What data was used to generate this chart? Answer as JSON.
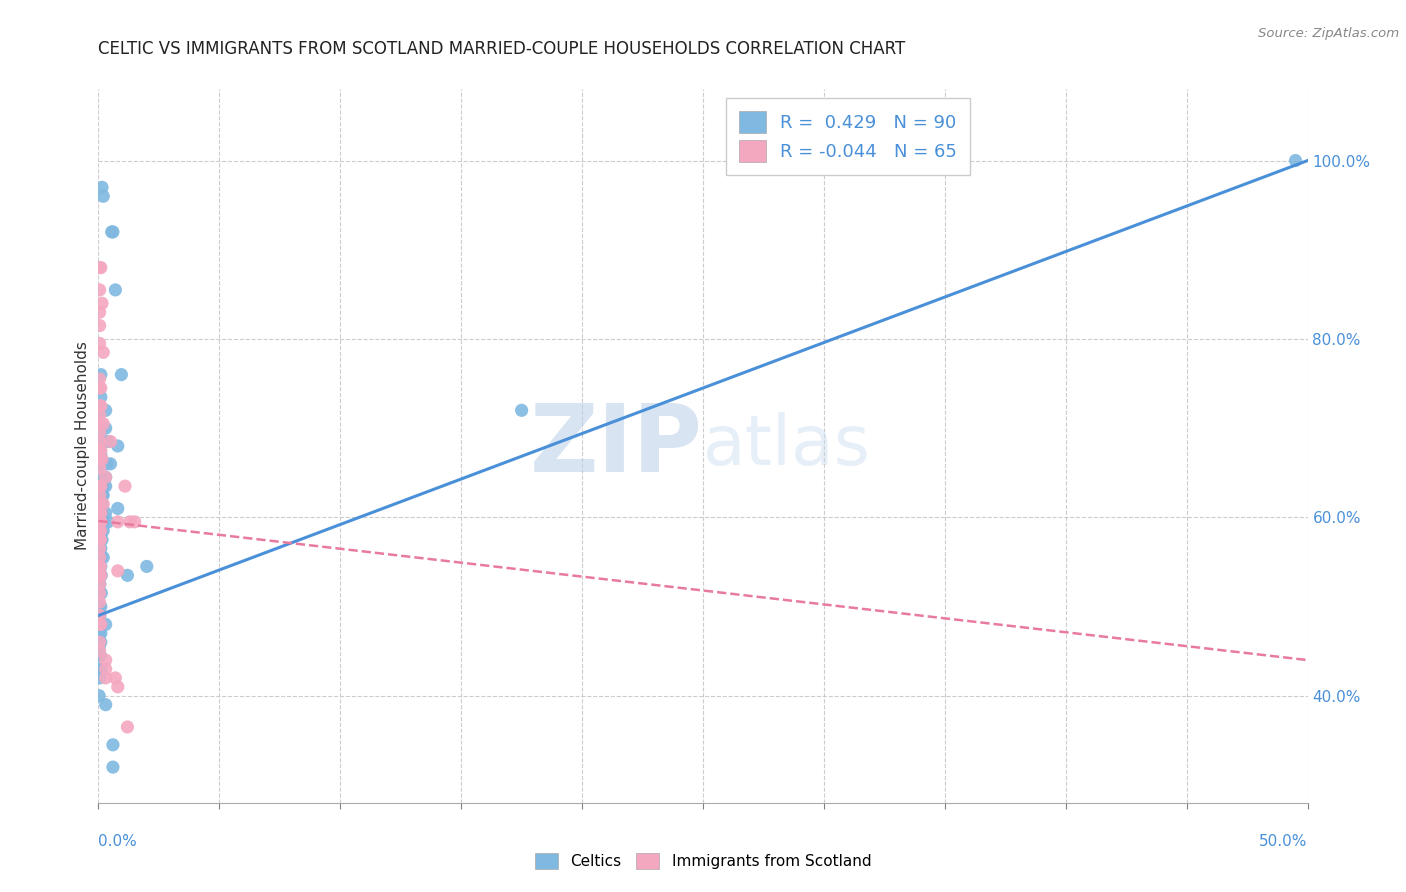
{
  "title": "CELTIC VS IMMIGRANTS FROM SCOTLAND MARRIED-COUPLE HOUSEHOLDS CORRELATION CHART",
  "source_text": "Source: ZipAtlas.com",
  "ylabel": "Married-couple Households",
  "celtics_color": "#7fb8e0",
  "immigrants_color": "#f4a8c0",
  "celtics_line_color": "#4a90d9",
  "immigrants_line_color": "#e87aa0",
  "background_color": "#ffffff",
  "watermark_zip": "ZIP",
  "watermark_atlas": "atlas",
  "celtics_scatter": [
    [
      0.0015,
      0.97
    ],
    [
      0.002,
      0.96
    ],
    [
      0.0055,
      0.92
    ],
    [
      0.006,
      0.92
    ],
    [
      0.007,
      0.855
    ],
    [
      0.001,
      0.76
    ],
    [
      0.0095,
      0.76
    ],
    [
      0.001,
      0.735
    ],
    [
      0.0005,
      0.72
    ],
    [
      0.003,
      0.72
    ],
    [
      0.003,
      0.7
    ],
    [
      0.0005,
      0.69
    ],
    [
      0.002,
      0.685
    ],
    [
      0.004,
      0.685
    ],
    [
      0.0005,
      0.675
    ],
    [
      0.001,
      0.67
    ],
    [
      0.0008,
      0.66
    ],
    [
      0.0012,
      0.66
    ],
    [
      0.0035,
      0.66
    ],
    [
      0.005,
      0.66
    ],
    [
      0.0008,
      0.645
    ],
    [
      0.003,
      0.645
    ],
    [
      0.0005,
      0.635
    ],
    [
      0.001,
      0.635
    ],
    [
      0.002,
      0.635
    ],
    [
      0.003,
      0.635
    ],
    [
      0.0005,
      0.625
    ],
    [
      0.0015,
      0.625
    ],
    [
      0.002,
      0.625
    ],
    [
      0.0005,
      0.615
    ],
    [
      0.001,
      0.615
    ],
    [
      0.0015,
      0.615
    ],
    [
      0.0003,
      0.605
    ],
    [
      0.0008,
      0.605
    ],
    [
      0.0015,
      0.605
    ],
    [
      0.003,
      0.605
    ],
    [
      0.0003,
      0.595
    ],
    [
      0.0008,
      0.595
    ],
    [
      0.0015,
      0.595
    ],
    [
      0.002,
      0.595
    ],
    [
      0.004,
      0.595
    ],
    [
      0.0003,
      0.585
    ],
    [
      0.0008,
      0.585
    ],
    [
      0.001,
      0.585
    ],
    [
      0.002,
      0.585
    ],
    [
      0.0003,
      0.575
    ],
    [
      0.0008,
      0.575
    ],
    [
      0.001,
      0.575
    ],
    [
      0.0015,
      0.575
    ],
    [
      0.0003,
      0.565
    ],
    [
      0.0008,
      0.565
    ],
    [
      0.001,
      0.565
    ],
    [
      0.0003,
      0.555
    ],
    [
      0.0008,
      0.555
    ],
    [
      0.001,
      0.555
    ],
    [
      0.002,
      0.555
    ],
    [
      0.0003,
      0.545
    ],
    [
      0.0006,
      0.545
    ],
    [
      0.001,
      0.545
    ],
    [
      0.0003,
      0.535
    ],
    [
      0.0006,
      0.535
    ],
    [
      0.0012,
      0.535
    ],
    [
      0.0003,
      0.525
    ],
    [
      0.0006,
      0.525
    ],
    [
      0.0003,
      0.515
    ],
    [
      0.0006,
      0.515
    ],
    [
      0.0012,
      0.515
    ],
    [
      0.0003,
      0.5
    ],
    [
      0.001,
      0.5
    ],
    [
      0.0003,
      0.49
    ],
    [
      0.0006,
      0.49
    ],
    [
      0.0003,
      0.48
    ],
    [
      0.001,
      0.48
    ],
    [
      0.003,
      0.48
    ],
    [
      0.0003,
      0.47
    ],
    [
      0.001,
      0.47
    ],
    [
      0.001,
      0.46
    ],
    [
      0.0003,
      0.455
    ],
    [
      0.0003,
      0.445
    ],
    [
      0.0008,
      0.445
    ],
    [
      0.0003,
      0.43
    ],
    [
      0.001,
      0.43
    ],
    [
      0.0005,
      0.42
    ],
    [
      0.0003,
      0.4
    ],
    [
      0.003,
      0.39
    ],
    [
      0.006,
      0.345
    ],
    [
      0.006,
      0.32
    ],
    [
      0.175,
      0.72
    ],
    [
      0.495,
      1.0
    ],
    [
      0.02,
      0.545
    ],
    [
      0.008,
      0.68
    ],
    [
      0.012,
      0.535
    ],
    [
      0.008,
      0.61
    ]
  ],
  "immigrants_scatter": [
    [
      0.0005,
      0.88
    ],
    [
      0.001,
      0.88
    ],
    [
      0.0005,
      0.855
    ],
    [
      0.0015,
      0.84
    ],
    [
      0.0005,
      0.83
    ],
    [
      0.0005,
      0.815
    ],
    [
      0.0005,
      0.795
    ],
    [
      0.002,
      0.785
    ],
    [
      0.0005,
      0.755
    ],
    [
      0.0005,
      0.745
    ],
    [
      0.001,
      0.745
    ],
    [
      0.0005,
      0.725
    ],
    [
      0.001,
      0.725
    ],
    [
      0.0005,
      0.715
    ],
    [
      0.0005,
      0.705
    ],
    [
      0.002,
      0.705
    ],
    [
      0.0005,
      0.695
    ],
    [
      0.0005,
      0.685
    ],
    [
      0.005,
      0.685
    ],
    [
      0.0005,
      0.675
    ],
    [
      0.001,
      0.675
    ],
    [
      0.0005,
      0.665
    ],
    [
      0.0015,
      0.665
    ],
    [
      0.0005,
      0.655
    ],
    [
      0.003,
      0.645
    ],
    [
      0.0005,
      0.635
    ],
    [
      0.001,
      0.635
    ],
    [
      0.0005,
      0.625
    ],
    [
      0.0005,
      0.615
    ],
    [
      0.002,
      0.615
    ],
    [
      0.0005,
      0.605
    ],
    [
      0.001,
      0.605
    ],
    [
      0.0005,
      0.595
    ],
    [
      0.0008,
      0.595
    ],
    [
      0.001,
      0.595
    ],
    [
      0.0005,
      0.585
    ],
    [
      0.0008,
      0.585
    ],
    [
      0.0005,
      0.575
    ],
    [
      0.0008,
      0.575
    ],
    [
      0.0005,
      0.565
    ],
    [
      0.0005,
      0.555
    ],
    [
      0.0005,
      0.545
    ],
    [
      0.0008,
      0.545
    ],
    [
      0.0005,
      0.535
    ],
    [
      0.001,
      0.535
    ],
    [
      0.0005,
      0.525
    ],
    [
      0.0005,
      0.515
    ],
    [
      0.0005,
      0.505
    ],
    [
      0.0005,
      0.49
    ],
    [
      0.0005,
      0.48
    ],
    [
      0.001,
      0.48
    ],
    [
      0.0005,
      0.46
    ],
    [
      0.0005,
      0.45
    ],
    [
      0.008,
      0.595
    ],
    [
      0.008,
      0.54
    ],
    [
      0.011,
      0.635
    ],
    [
      0.013,
      0.595
    ],
    [
      0.015,
      0.595
    ],
    [
      0.012,
      0.365
    ],
    [
      0.003,
      0.44
    ],
    [
      0.003,
      0.43
    ],
    [
      0.003,
      0.42
    ],
    [
      0.007,
      0.42
    ],
    [
      0.008,
      0.41
    ]
  ],
  "celtics_trendline_x": [
    0.0,
    0.5
  ],
  "celtics_trendline_y": [
    0.49,
    1.0
  ],
  "immigrants_trendline_x": [
    0.0,
    0.5
  ],
  "immigrants_trendline_y": [
    0.596,
    0.44
  ],
  "xlim": [
    0.0,
    0.5
  ],
  "ylim": [
    0.28,
    1.08
  ],
  "right_yticks": [
    1.0,
    0.8,
    0.6,
    0.4
  ],
  "right_yticklabels": [
    "100.0%",
    "80.0%",
    "60.0%",
    "40.0%"
  ],
  "xtick_positions": [
    0.0,
    0.05,
    0.1,
    0.15,
    0.2,
    0.25,
    0.3,
    0.35,
    0.4,
    0.45,
    0.5
  ]
}
